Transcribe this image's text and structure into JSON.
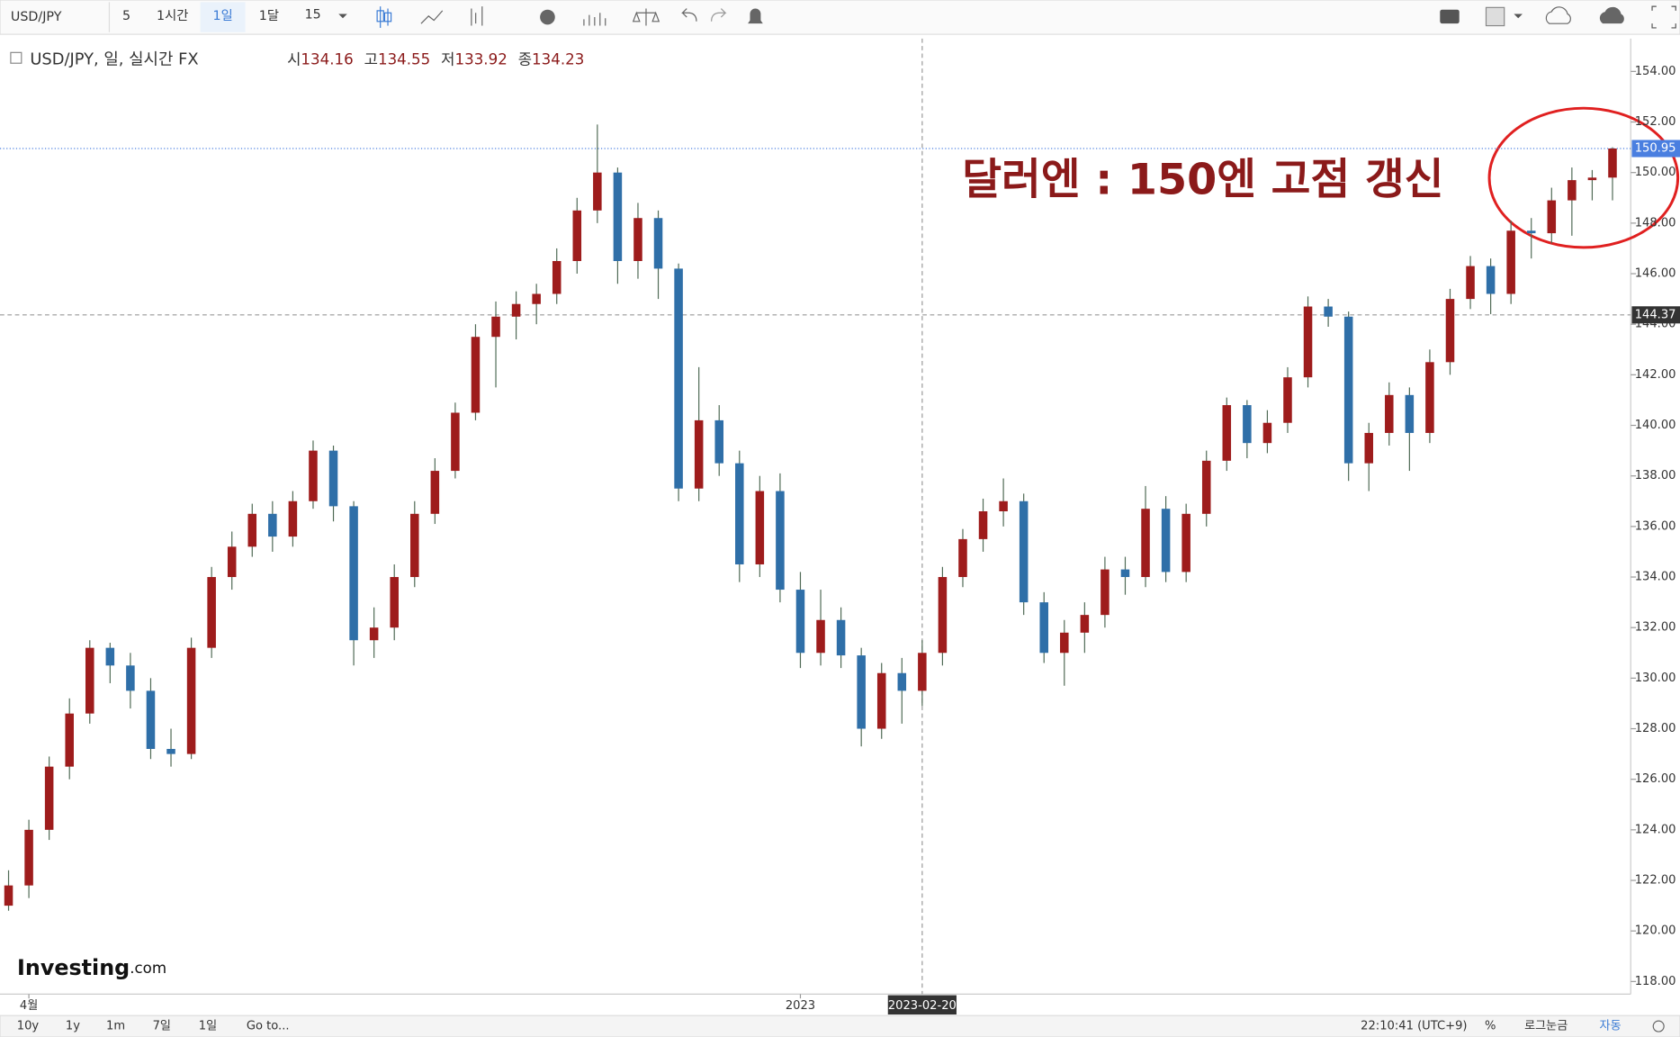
{
  "toolbar": {
    "symbol": "USD/JPY",
    "intervals": [
      "5",
      "1시간",
      "1일",
      "1달"
    ],
    "count": "15"
  },
  "chart_data": {
    "type": "candlestick",
    "title": "USD/JPY, 일, 실시간 FX",
    "legend_ohlc": [
      {
        "label": "시",
        "value": 134.16
      },
      {
        "label": "고",
        "value": 134.55
      },
      {
        "label": "저",
        "value": 133.92
      },
      {
        "label": "종",
        "value": 134.23
      }
    ],
    "annotation": "달러엔 : 150엔 고점 갱신",
    "up_color": "#9e1c1c",
    "down_color": "#2f6fa8",
    "wick_color": "#4f6a55",
    "categories": [
      null,
      "4월",
      null,
      null,
      null,
      null,
      null,
      null,
      null,
      null,
      null,
      null,
      null,
      null,
      null,
      null,
      null,
      null,
      null,
      null,
      null,
      null,
      null,
      null,
      null,
      null,
      null,
      null,
      null,
      null,
      null,
      null,
      null,
      null,
      null,
      null,
      null,
      null,
      null,
      "2023",
      null,
      null,
      null,
      null,
      null,
      "2023-02-20",
      null,
      null,
      null,
      null,
      null,
      null,
      null,
      null,
      null,
      null,
      null,
      null,
      null,
      null,
      null,
      null,
      null,
      null,
      null,
      null,
      null,
      null,
      null,
      null,
      null,
      null,
      null,
      null,
      null,
      null,
      null,
      null,
      null,
      null
    ],
    "open": [
      121.0,
      121.8,
      124.0,
      126.5,
      128.6,
      131.2,
      130.5,
      129.5,
      127.2,
      127.0,
      131.2,
      134.0,
      135.2,
      136.5,
      135.6,
      137.0,
      139.0,
      136.8,
      131.5,
      132.0,
      134.0,
      136.5,
      138.2,
      140.5,
      143.5,
      144.3,
      144.8,
      145.2,
      146.5,
      148.5,
      150.0,
      146.5,
      148.2,
      146.2,
      137.5,
      140.2,
      138.5,
      134.5,
      137.4,
      133.5,
      131.0,
      132.3,
      130.9,
      128.0,
      130.2,
      129.5,
      131.0,
      134.0,
      135.5,
      136.6,
      137.0,
      133.0,
      131.0,
      131.8,
      132.5,
      134.3,
      134.0,
      136.7,
      134.2,
      136.5,
      138.6,
      140.8,
      139.3,
      140.1,
      141.9,
      144.7,
      144.3,
      138.5,
      139.7,
      141.2,
      139.7,
      142.5,
      145.0,
      146.3,
      145.2,
      147.7,
      147.6,
      148.9,
      149.7,
      149.8
    ],
    "high": [
      122.4,
      124.4,
      126.9,
      129.2,
      131.5,
      131.4,
      131.0,
      130.0,
      128.0,
      131.6,
      134.4,
      135.8,
      136.9,
      137.0,
      137.4,
      139.4,
      139.2,
      137.0,
      132.8,
      134.5,
      137.0,
      138.7,
      140.9,
      144.0,
      144.9,
      145.3,
      145.6,
      147.0,
      149.0,
      151.9,
      150.2,
      148.8,
      148.5,
      146.4,
      142.3,
      140.8,
      139.0,
      138.0,
      138.1,
      134.2,
      133.5,
      132.8,
      131.2,
      130.6,
      130.8,
      131.5,
      134.4,
      135.9,
      137.1,
      137.9,
      137.3,
      133.4,
      132.3,
      133.0,
      134.8,
      134.8,
      137.6,
      137.2,
      136.9,
      139.0,
      141.1,
      141.0,
      140.6,
      142.3,
      145.1,
      145.0,
      144.5,
      140.1,
      141.7,
      141.5,
      143.0,
      145.4,
      146.7,
      146.6,
      148.1,
      148.2,
      149.4,
      150.2,
      150.1,
      151.0
    ],
    "low": [
      120.8,
      121.3,
      123.6,
      126.0,
      128.2,
      129.8,
      128.8,
      126.8,
      126.5,
      126.8,
      130.8,
      133.5,
      134.8,
      135.0,
      135.2,
      136.7,
      136.2,
      130.5,
      130.8,
      131.5,
      133.6,
      136.1,
      137.9,
      140.2,
      141.5,
      143.4,
      144.0,
      144.8,
      146.0,
      148.0,
      145.6,
      145.8,
      145.0,
      137.0,
      137.0,
      138.0,
      133.8,
      134.0,
      133.0,
      130.4,
      130.5,
      130.4,
      127.3,
      127.6,
      128.2,
      128.9,
      130.5,
      133.6,
      135.0,
      136.0,
      132.5,
      130.6,
      129.7,
      131.0,
      132.0,
      133.3,
      133.6,
      133.8,
      133.8,
      136.0,
      138.2,
      138.7,
      138.9,
      139.7,
      141.5,
      143.9,
      137.8,
      137.4,
      139.2,
      138.2,
      139.3,
      142.0,
      144.6,
      144.4,
      144.8,
      146.6,
      147.2,
      147.5,
      148.9,
      148.9
    ],
    "close": [
      121.8,
      124.0,
      126.5,
      128.6,
      131.2,
      130.5,
      129.5,
      127.2,
      127.0,
      131.2,
      134.0,
      135.2,
      136.5,
      135.6,
      137.0,
      139.0,
      136.8,
      131.5,
      132.0,
      134.0,
      136.5,
      138.2,
      140.5,
      143.5,
      144.3,
      144.8,
      145.2,
      146.5,
      148.5,
      150.0,
      146.5,
      148.2,
      146.2,
      137.5,
      140.2,
      138.5,
      134.5,
      137.4,
      133.5,
      131.0,
      132.3,
      130.9,
      128.0,
      130.2,
      129.5,
      131.0,
      134.0,
      135.5,
      136.6,
      137.0,
      133.0,
      131.0,
      131.8,
      132.5,
      134.3,
      134.0,
      136.7,
      134.2,
      136.5,
      138.6,
      140.8,
      139.3,
      140.1,
      141.9,
      144.7,
      144.3,
      138.5,
      139.7,
      141.2,
      139.7,
      142.5,
      145.0,
      146.3,
      145.2,
      147.7,
      147.6,
      148.9,
      149.7,
      149.8,
      150.95
    ],
    "crosshair_price": 144.37,
    "ylim": [
      117.5,
      155.3
    ],
    "yticks": [
      {
        "value": 118,
        "label": "118.00"
      },
      {
        "value": 120,
        "label": "120.00"
      },
      {
        "value": 122,
        "label": "122.00"
      },
      {
        "value": 124,
        "label": "124.00"
      },
      {
        "value": 126,
        "label": "126.00"
      },
      {
        "value": 128,
        "label": "128.00"
      },
      {
        "value": 130,
        "label": "130.00"
      },
      {
        "value": 132,
        "label": "132.00"
      },
      {
        "value": 134,
        "label": "134.00"
      },
      {
        "value": 136,
        "label": "136.00"
      },
      {
        "value": 138,
        "label": "138.00"
      },
      {
        "value": 140,
        "label": "140.00"
      },
      {
        "value": 142,
        "label": "142.00"
      },
      {
        "value": 144,
        "label": "144.00"
      },
      {
        "value": 146,
        "label": "146.00"
      },
      {
        "value": 148,
        "label": "148.00"
      },
      {
        "value": 150,
        "label": "150.00"
      },
      {
        "value": 152,
        "label": "152.00"
      },
      {
        "value": 154,
        "label": "154.00"
      }
    ],
    "grid": false
  },
  "logo": {
    "main": "Investing",
    "suffix": ".com"
  },
  "bottom_bar": {
    "ranges": [
      "10y",
      "1y",
      "1m",
      "7일",
      "1일"
    ],
    "goto": "Go to...",
    "time": "22:10:41 (UTC+9)",
    "options": [
      "%",
      "로그눈금",
      "자동"
    ]
  }
}
